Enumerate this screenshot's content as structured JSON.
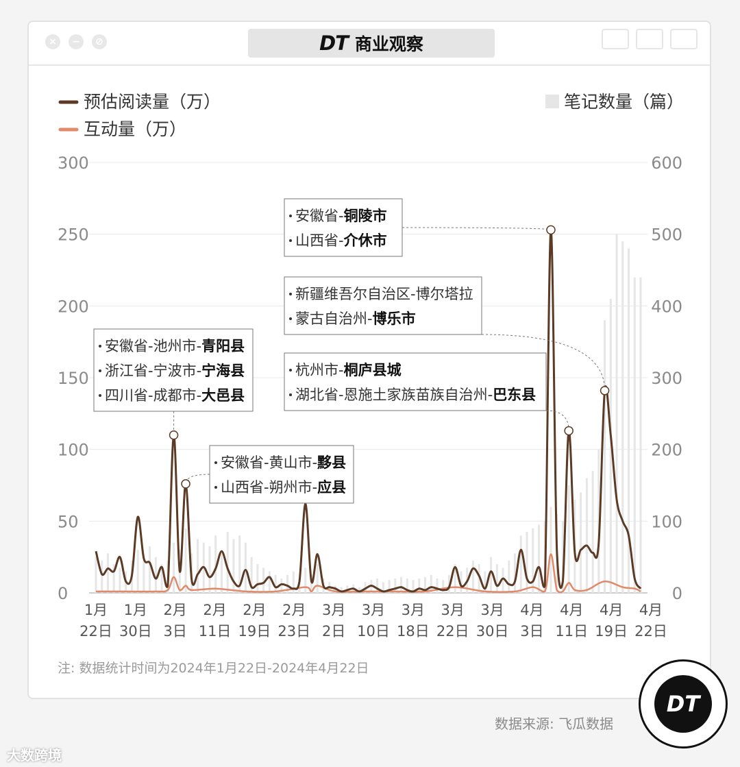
{
  "window": {
    "title_logo": "DT",
    "title_text": "商业观察",
    "close_icon": "close-icon",
    "minimize_icon": "minimize-icon",
    "block_icon": "block-icon"
  },
  "chart_data": {
    "type": "line+bar",
    "series": [
      {
        "name": "预估阅读量（万）",
        "axis": "left",
        "color": "#5b3b25",
        "kind": "line",
        "x": [
          0,
          1,
          2,
          3,
          4,
          5,
          6,
          7,
          8,
          9,
          10,
          11,
          12,
          13,
          14,
          15,
          16,
          17,
          18,
          19,
          20,
          21,
          22,
          23,
          24,
          25,
          26,
          27,
          28,
          29,
          30,
          31,
          32,
          33,
          34,
          35,
          36,
          37,
          38,
          39,
          40,
          41,
          42,
          43,
          44,
          45,
          46,
          47,
          48,
          49,
          50,
          51,
          52,
          53,
          54,
          55,
          56,
          57,
          58,
          59,
          60,
          61,
          62,
          63,
          64,
          65,
          66,
          67,
          68,
          69,
          70,
          71,
          72,
          73,
          74,
          75,
          76,
          77,
          78,
          79,
          80,
          81,
          82,
          83,
          84,
          85,
          86,
          87,
          88,
          89,
          90,
          91
        ],
        "values": [
          29,
          13,
          17,
          15,
          25,
          8,
          12,
          53,
          24,
          21,
          10,
          18,
          5,
          110,
          15,
          76,
          9,
          13,
          18,
          11,
          17,
          29,
          17,
          8,
          5,
          16,
          4,
          6,
          7,
          11,
          4,
          6,
          5,
          3,
          8,
          62,
          8,
          27,
          5,
          4,
          3,
          1,
          2,
          3,
          1,
          3,
          5,
          3,
          1,
          2,
          3,
          4,
          2,
          1,
          3,
          2,
          4,
          3,
          2,
          4,
          18,
          5,
          8,
          17,
          12,
          3,
          15,
          5,
          10,
          6,
          8,
          30,
          10,
          8,
          18,
          5,
          253,
          30,
          8,
          113,
          28,
          30,
          33,
          28,
          35,
          141,
          110,
          65,
          50,
          40,
          10,
          3
        ]
      },
      {
        "name": "互动量（万）",
        "axis": "left",
        "color": "#e08a6a",
        "kind": "line",
        "x": [
          0,
          5,
          10,
          12,
          13,
          14,
          15,
          16,
          20,
          25,
          30,
          35,
          36,
          37,
          40,
          45,
          50,
          55,
          60,
          65,
          70,
          73,
          75,
          76,
          77,
          78,
          79,
          80,
          82,
          85,
          88,
          90,
          91
        ],
        "values": [
          1,
          1,
          1,
          2,
          11,
          2,
          5,
          2,
          3,
          1,
          1,
          4,
          1,
          5,
          1,
          1,
          1,
          1,
          4,
          1,
          1,
          4,
          1,
          27,
          2,
          1,
          7,
          2,
          2,
          8,
          4,
          3,
          1
        ]
      },
      {
        "name": "笔记数量（篇）",
        "axis": "right",
        "color": "#e6e6e6",
        "kind": "bar",
        "x": [
          0,
          1,
          2,
          3,
          4,
          5,
          6,
          7,
          8,
          9,
          10,
          11,
          12,
          13,
          14,
          15,
          16,
          17,
          18,
          19,
          20,
          21,
          22,
          23,
          24,
          25,
          26,
          27,
          28,
          29,
          30,
          31,
          32,
          33,
          34,
          35,
          36,
          37,
          38,
          39,
          40,
          41,
          42,
          43,
          44,
          45,
          46,
          47,
          48,
          49,
          50,
          51,
          52,
          53,
          54,
          55,
          56,
          57,
          58,
          59,
          60,
          61,
          62,
          63,
          64,
          65,
          66,
          67,
          68,
          69,
          70,
          71,
          72,
          73,
          74,
          75,
          76,
          77,
          78,
          79,
          80,
          81,
          82,
          83,
          84,
          85,
          86,
          87,
          88,
          89,
          90,
          91
        ],
        "values": [
          50,
          45,
          55,
          40,
          35,
          30,
          45,
          60,
          55,
          65,
          50,
          40,
          45,
          70,
          60,
          90,
          55,
          75,
          70,
          65,
          80,
          60,
          85,
          75,
          80,
          70,
          50,
          40,
          35,
          30,
          25,
          20,
          25,
          30,
          20,
          35,
          25,
          40,
          20,
          15,
          10,
          8,
          10,
          12,
          8,
          15,
          18,
          20,
          15,
          18,
          20,
          22,
          20,
          18,
          20,
          22,
          25,
          20,
          18,
          25,
          40,
          30,
          35,
          45,
          40,
          30,
          50,
          40,
          35,
          45,
          55,
          80,
          85,
          90,
          95,
          100,
          120,
          110,
          100,
          150,
          130,
          140,
          160,
          170,
          200,
          380,
          410,
          500,
          490,
          480,
          440,
          440
        ]
      }
    ],
    "categories": [
      "1月22日",
      "1月30日",
      "2月3日",
      "2月11日",
      "2月19日",
      "2月23日",
      "3月2日",
      "3月10日",
      "3月18日",
      "3月22日",
      "3月30日",
      "4月3日",
      "4月11日",
      "4月19日",
      "4月22日"
    ],
    "left_axis": {
      "ylim": [
        0,
        300
      ],
      "ticks": [
        "0",
        "50",
        "100",
        "150",
        "200",
        "250",
        "300"
      ]
    },
    "right_axis": {
      "ylim": [
        0,
        600
      ],
      "ticks": [
        "0",
        "100",
        "200",
        "300",
        "400",
        "500",
        "600"
      ]
    },
    "annotations": [
      {
        "lines": [
          "安徽省-池州市-青阳县",
          "浙江省-宁波市-宁海县",
          "四川省-成都市-大邑县"
        ],
        "bold": [
          "青阳县",
          "宁海县",
          "大邑县"
        ]
      },
      {
        "lines": [
          "安徽省-黄山市-黟县",
          "山西省-朔州市-应县"
        ],
        "bold": [
          "黟县",
          "应县"
        ]
      },
      {
        "lines": [
          "安徽省-铜陵市",
          "山西省-介休市"
        ],
        "bold": [
          "铜陵市",
          "介休市"
        ]
      },
      {
        "lines": [
          "新疆维吾尔自治区-博尔塔拉",
          "蒙古自治州-博乐市"
        ],
        "bold": [
          "",
          "博乐市"
        ]
      },
      {
        "lines": [
          "杭州市-桐庐县城",
          "湖北省-恩施土家族苗族自治州-巴东县"
        ],
        "bold": [
          "桐庐县城",
          "巴东县"
        ]
      }
    ],
    "note": "注: 数据统计时间为2024年1月22日-2024年4月22日"
  },
  "source": "数据来源: 飞瓜数据",
  "badge_logo": "DT",
  "footer_watermark": "大数跨境"
}
